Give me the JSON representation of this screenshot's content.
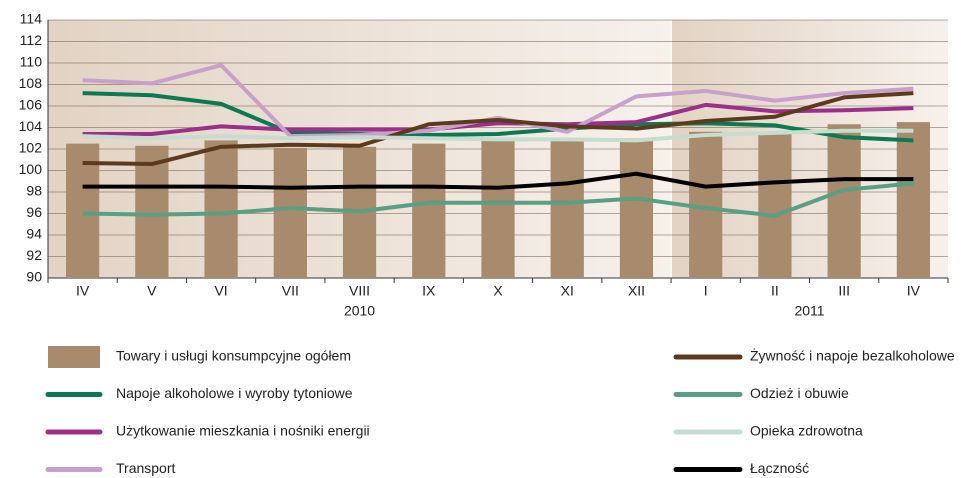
{
  "chart_data": {
    "type": "bar",
    "categories": [
      "IV",
      "V",
      "VI",
      "VII",
      "VIII",
      "IX",
      "X",
      "XI",
      "XII",
      "I",
      "II",
      "III",
      "IV"
    ],
    "groups": [
      {
        "label": "2010",
        "count": 9
      },
      {
        "label": "2011",
        "count": 4
      }
    ],
    "ylim": [
      90,
      114
    ],
    "yticks": [
      90,
      92,
      94,
      96,
      98,
      100,
      102,
      104,
      106,
      108,
      110,
      112,
      114
    ],
    "grid": true,
    "series": [
      {
        "name": "Towary i usługi konsumpcyjne ogółem",
        "type": "bar",
        "color": "#a88a6c",
        "values": [
          102.5,
          102.3,
          102.8,
          102.1,
          102.2,
          102.5,
          102.8,
          103.0,
          103.0,
          103.6,
          103.6,
          104.3,
          104.5
        ]
      },
      {
        "name": "Napoje alkoholowe i wyroby tytoniowe",
        "type": "line",
        "color": "#0b7a52",
        "values": [
          107.2,
          107.0,
          106.2,
          103.5,
          103.4,
          103.3,
          103.4,
          103.9,
          104.3,
          104.4,
          104.2,
          103.1,
          102.8
        ]
      },
      {
        "name": "Użytkowanie mieszkania i nośniki energii",
        "type": "line",
        "color": "#9b2f8a",
        "values": [
          103.4,
          103.4,
          104.1,
          103.8,
          103.8,
          103.8,
          104.4,
          104.3,
          104.5,
          106.1,
          105.5,
          105.6,
          105.8
        ]
      },
      {
        "name": "Transport",
        "type": "line",
        "color": "#c9a0cc",
        "values": [
          108.4,
          108.1,
          109.8,
          103.2,
          103.3,
          103.7,
          104.9,
          103.6,
          106.9,
          107.4,
          106.5,
          107.2,
          107.6
        ]
      },
      {
        "name": "Żywność i napoje bezalkoholowe",
        "type": "line",
        "color": "#5c3a1e",
        "values": [
          100.7,
          100.6,
          102.2,
          102.4,
          102.3,
          104.3,
          104.7,
          104.1,
          103.9,
          104.6,
          105.0,
          106.8,
          107.2
        ]
      },
      {
        "name": "Odzież i obuwie",
        "type": "line",
        "color": "#5a9e84",
        "values": [
          96.0,
          95.9,
          96.0,
          96.5,
          96.2,
          97.0,
          97.0,
          97.0,
          97.4,
          96.5,
          95.8,
          98.2,
          98.8
        ]
      },
      {
        "name": "Opieka zdrowotna",
        "type": "line",
        "color": "#c5dccf",
        "values": [
          103.2,
          103.0,
          103.2,
          103.0,
          103.1,
          103.0,
          102.9,
          102.9,
          102.8,
          103.3,
          103.5,
          103.7,
          103.7
        ]
      },
      {
        "name": "Łączność",
        "type": "line",
        "color": "#000000",
        "values": [
          98.5,
          98.5,
          98.5,
          98.4,
          98.5,
          98.5,
          98.4,
          98.8,
          99.7,
          98.5,
          98.9,
          99.2,
          99.2
        ]
      }
    ]
  }
}
